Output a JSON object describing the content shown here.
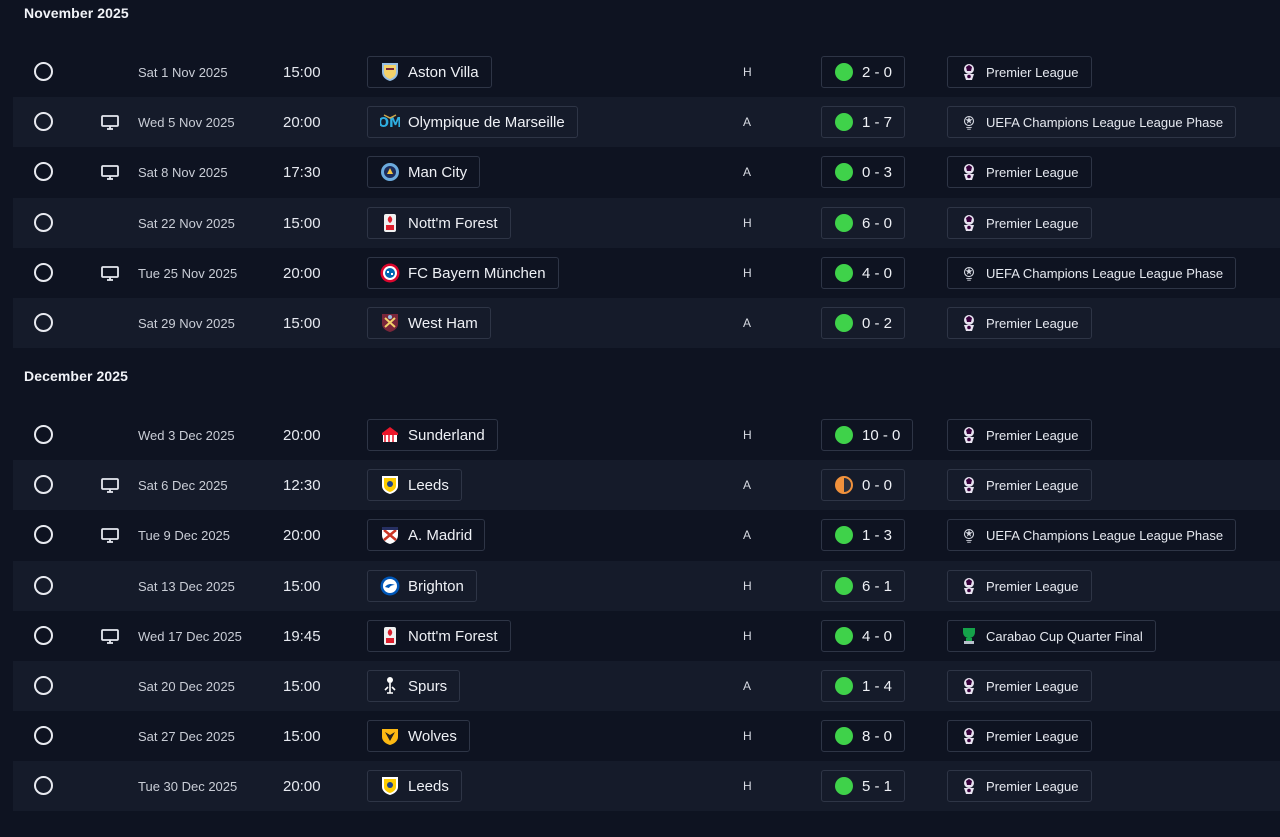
{
  "months": [
    {
      "title": "November 2025",
      "fixtures": [
        {
          "date": "Sat 1 Nov 2025",
          "time": "15:00",
          "team": "Aston Villa",
          "crest": "aston-villa-crest",
          "venue": "H",
          "score": "2 - 0",
          "result": "win",
          "competition": "Premier League",
          "comp_icon": "premier-league-icon",
          "tv": false
        },
        {
          "date": "Wed 5 Nov 2025",
          "time": "20:00",
          "team": "Olympique de Marseille",
          "crest": "marseille-crest",
          "venue": "A",
          "score": "1 - 7",
          "result": "win",
          "competition": "UEFA Champions League League Phase",
          "comp_icon": "champions-league-icon",
          "tv": true
        },
        {
          "date": "Sat 8 Nov 2025",
          "time": "17:30",
          "team": "Man City",
          "crest": "man-city-crest",
          "venue": "A",
          "score": "0 - 3",
          "result": "win",
          "competition": "Premier League",
          "comp_icon": "premier-league-icon",
          "tv": true
        },
        {
          "date": "Sat 22 Nov 2025",
          "time": "15:00",
          "team": "Nott'm Forest",
          "crest": "nottm-forest-crest",
          "venue": "H",
          "score": "6 - 0",
          "result": "win",
          "competition": "Premier League",
          "comp_icon": "premier-league-icon",
          "tv": false
        },
        {
          "date": "Tue 25 Nov 2025",
          "time": "20:00",
          "team": "FC Bayern München",
          "crest": "bayern-crest",
          "venue": "H",
          "score": "4 - 0",
          "result": "win",
          "competition": "UEFA Champions League League Phase",
          "comp_icon": "champions-league-icon",
          "tv": true
        },
        {
          "date": "Sat 29 Nov 2025",
          "time": "15:00",
          "team": "West Ham",
          "crest": "west-ham-crest",
          "venue": "A",
          "score": "0 - 2",
          "result": "win",
          "competition": "Premier League",
          "comp_icon": "premier-league-icon",
          "tv": false
        }
      ]
    },
    {
      "title": "December 2025",
      "fixtures": [
        {
          "date": "Wed 3 Dec 2025",
          "time": "20:00",
          "team": "Sunderland",
          "crest": "sunderland-crest",
          "venue": "H",
          "score": "10 - 0",
          "result": "win",
          "competition": "Premier League",
          "comp_icon": "premier-league-icon",
          "tv": false
        },
        {
          "date": "Sat 6 Dec 2025",
          "time": "12:30",
          "team": "Leeds",
          "crest": "leeds-crest",
          "venue": "A",
          "score": "0 - 0",
          "result": "draw",
          "competition": "Premier League",
          "comp_icon": "premier-league-icon",
          "tv": true
        },
        {
          "date": "Tue 9 Dec 2025",
          "time": "20:00",
          "team": "A. Madrid",
          "crest": "atletico-crest",
          "venue": "A",
          "score": "1 - 3",
          "result": "win",
          "competition": "UEFA Champions League League Phase",
          "comp_icon": "champions-league-icon",
          "tv": true
        },
        {
          "date": "Sat 13 Dec 2025",
          "time": "15:00",
          "team": "Brighton",
          "crest": "brighton-crest",
          "venue": "H",
          "score": "6 - 1",
          "result": "win",
          "competition": "Premier League",
          "comp_icon": "premier-league-icon",
          "tv": false
        },
        {
          "date": "Wed 17 Dec 2025",
          "time": "19:45",
          "team": "Nott'm Forest",
          "crest": "nottm-forest-crest",
          "venue": "H",
          "score": "4 - 0",
          "result": "win",
          "competition": "Carabao Cup Quarter Final",
          "comp_icon": "carabao-cup-icon",
          "tv": true
        },
        {
          "date": "Sat 20 Dec 2025",
          "time": "15:00",
          "team": "Spurs",
          "crest": "spurs-crest",
          "venue": "A",
          "score": "1 - 4",
          "result": "win",
          "competition": "Premier League",
          "comp_icon": "premier-league-icon",
          "tv": false
        },
        {
          "date": "Sat 27 Dec 2025",
          "time": "15:00",
          "team": "Wolves",
          "crest": "wolves-crest",
          "venue": "H",
          "score": "8 - 0",
          "result": "win",
          "competition": "Premier League",
          "comp_icon": "premier-league-icon",
          "tv": false
        },
        {
          "date": "Tue 30 Dec 2025",
          "time": "20:00",
          "team": "Leeds",
          "crest": "leeds-crest",
          "venue": "H",
          "score": "5 - 1",
          "result": "win",
          "competition": "Premier League",
          "comp_icon": "premier-league-icon",
          "tv": false
        }
      ]
    }
  ],
  "colors": {
    "win": "#3fd24a",
    "draw": "#f0913c",
    "background": "#0e1321",
    "row_alt": "#151b2a"
  }
}
